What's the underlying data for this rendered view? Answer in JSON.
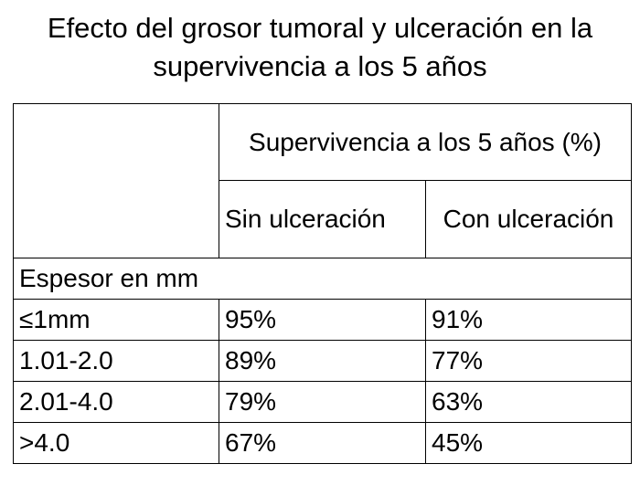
{
  "title": "Efecto del grosor tumoral y ulceración en la supervivencia a los 5 años",
  "table": {
    "group_header": "Supervivencia a los 5 años (%)",
    "columns": [
      "Sin ulceración",
      "Con ulceración"
    ],
    "section": "Espesor en mm",
    "rows": [
      [
        "≤1mm",
        "95%",
        "91%"
      ],
      [
        "1.01-2.0",
        "89%",
        "77%"
      ],
      [
        "2.01-4.0",
        "79%",
        "63%"
      ],
      [
        ">4.0",
        "67%",
        "45%"
      ]
    ]
  }
}
